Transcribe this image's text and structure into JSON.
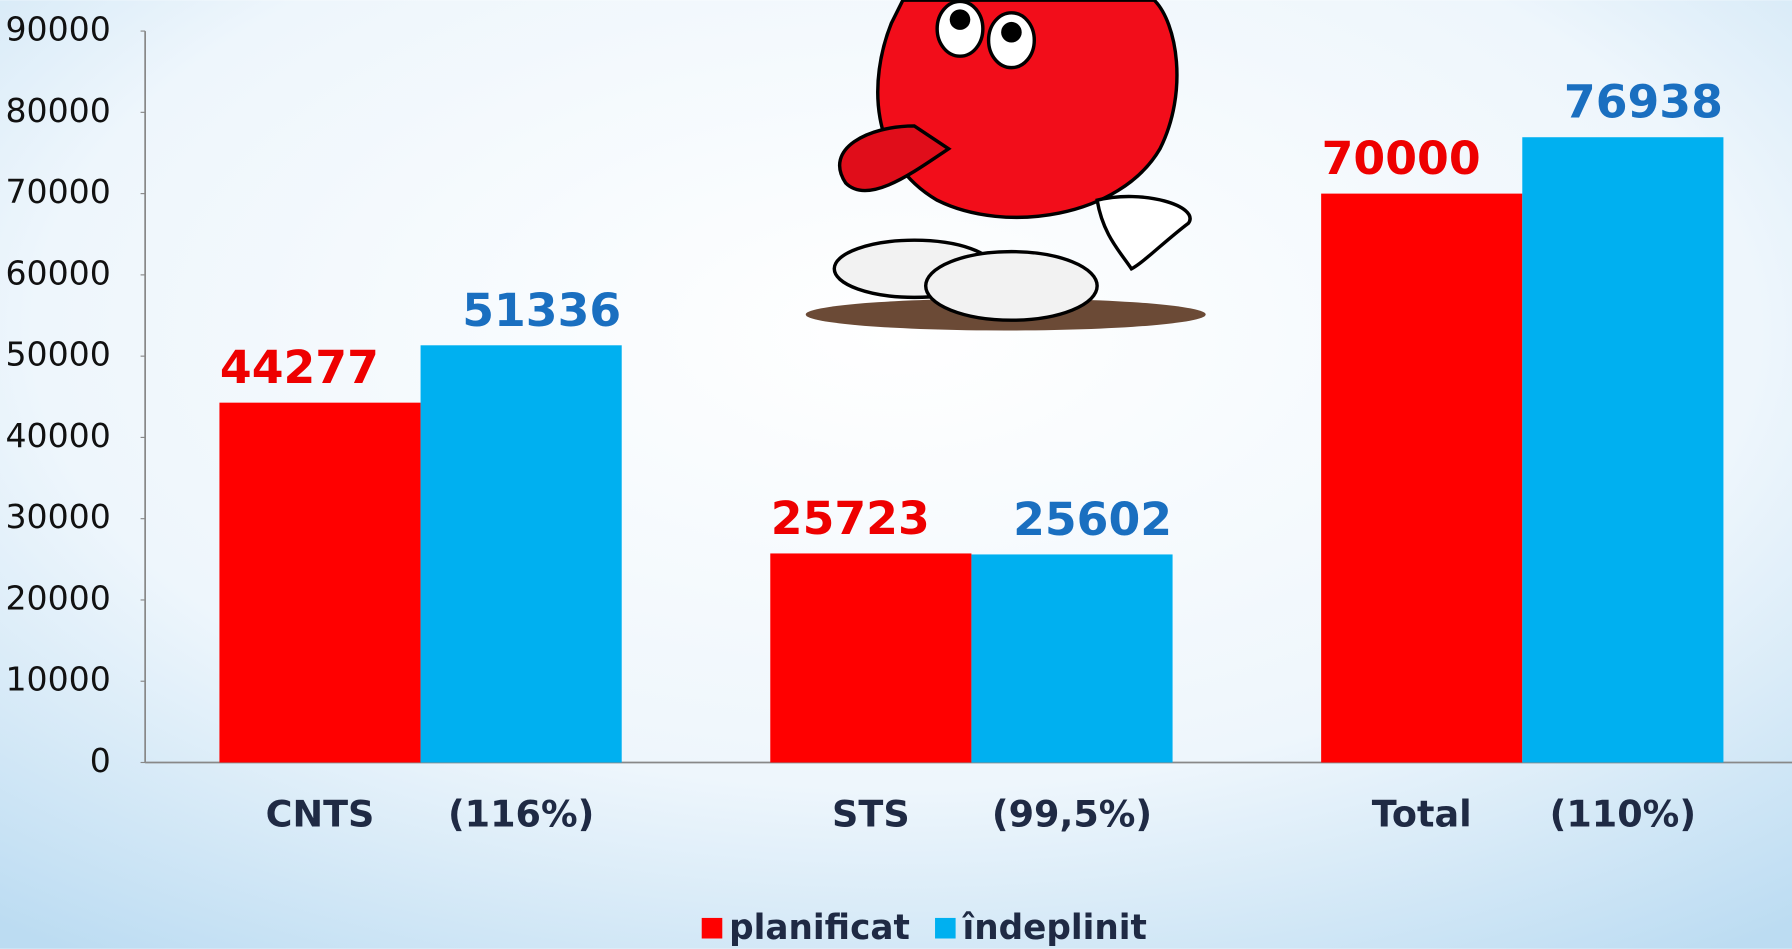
{
  "chart_data": {
    "type": "bar",
    "categories": [
      "CNTS",
      "STS",
      "Total"
    ],
    "category_notes": [
      "(116%)",
      "(99,5%)",
      "(110%)"
    ],
    "series": [
      {
        "name": "planificat",
        "color": "#ff0000",
        "label_color": "#ee0000",
        "values": [
          44277,
          25723,
          70000
        ]
      },
      {
        "name": "îndeplinit",
        "color": "#00b0f0",
        "label_color": "#1a6fc0",
        "values": [
          51336,
          25602,
          76938
        ]
      }
    ],
    "ylim": [
      0,
      90000
    ],
    "yticks": [
      0,
      10000,
      20000,
      30000,
      40000,
      50000,
      60000,
      70000,
      80000,
      90000
    ],
    "legend": "bottom"
  }
}
